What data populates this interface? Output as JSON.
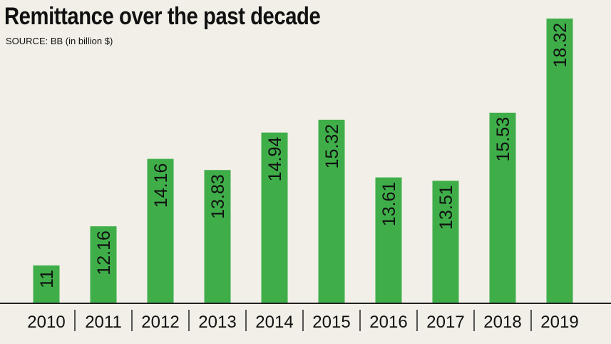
{
  "header": {
    "title": "Remittance over the past decade",
    "subtitle": "SOURCE: BB (in billion $)"
  },
  "colors": {
    "bar": "#3fae49",
    "background": "#f1efe7",
    "axis": "#222222"
  },
  "chart_data": {
    "type": "bar",
    "title": "Remittance over the past decade",
    "subtitle": "SOURCE: BB (in billion $)",
    "xlabel": "",
    "ylabel": "",
    "categories": [
      "2010",
      "2011",
      "2012",
      "2013",
      "2014",
      "2015",
      "2016",
      "2017",
      "2018",
      "2019"
    ],
    "values": [
      11,
      12.16,
      14.16,
      13.83,
      14.94,
      15.32,
      13.61,
      13.51,
      15.53,
      18.32
    ],
    "data_labels": [
      "11",
      "12.16",
      "14.16",
      "13.83",
      "14.94",
      "15.32",
      "13.61",
      "13.51",
      "15.53",
      "18.32"
    ],
    "grid": false,
    "legend": "none"
  }
}
